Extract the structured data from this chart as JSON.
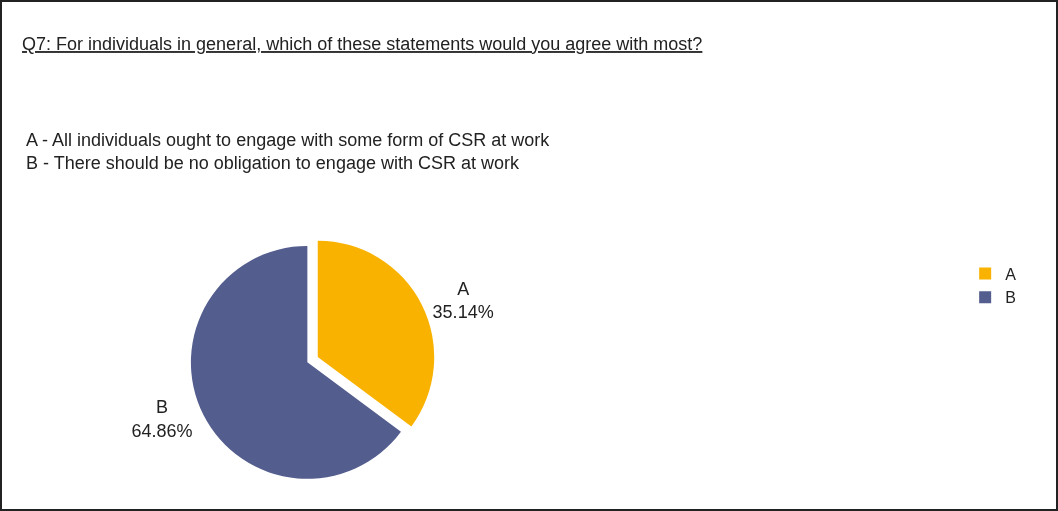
{
  "chart_data": {
    "type": "pie",
    "title": "Q7: For individuals in general, which of these statements would you agree with most?",
    "subtitle": "A - All individuals ought to engage with some form of CSR at work\nB - There should be no obligation to engage with CSR at work",
    "categories": [
      "A",
      "B"
    ],
    "values": [
      35.14,
      64.86
    ],
    "value_labels": [
      "35.14%",
      "64.86%"
    ],
    "colors": [
      "#f9b200",
      "#535d8e"
    ],
    "legend": "right"
  }
}
